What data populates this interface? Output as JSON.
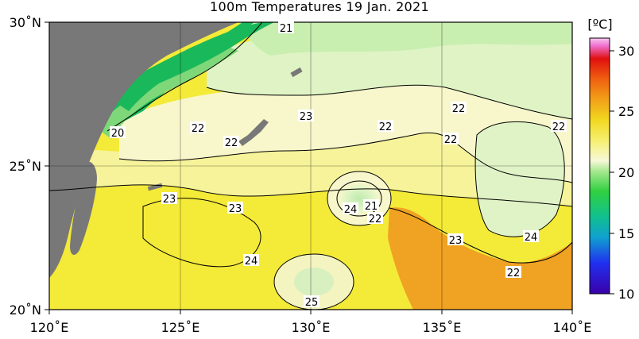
{
  "title": "100m Temperatures  19 Jan. 2021",
  "unit_label": "[ºC]",
  "x_ticks": [
    "120˚E",
    "125˚E",
    "130˚E",
    "135˚E",
    "140˚E"
  ],
  "y_ticks": [
    "30˚N",
    "25˚N",
    "20˚N"
  ],
  "colorbar": {
    "ticks": [
      "30",
      "25",
      "20",
      "15",
      "10"
    ],
    "range": [
      10,
      31
    ]
  },
  "contour_labels": [
    "21",
    "22",
    "20",
    "22",
    "23",
    "22",
    "22",
    "22",
    "22",
    "23",
    "23",
    "24",
    "21",
    "22",
    "23",
    "24",
    "24",
    "22",
    "25",
    "22"
  ],
  "colors": {
    "land": "#787878",
    "coast_green": "#19b85a",
    "cool_green": "#c4eebc",
    "pale": "#f5f8d0",
    "yellow": "#f2ec2a",
    "orange": "#f2a21e"
  }
}
